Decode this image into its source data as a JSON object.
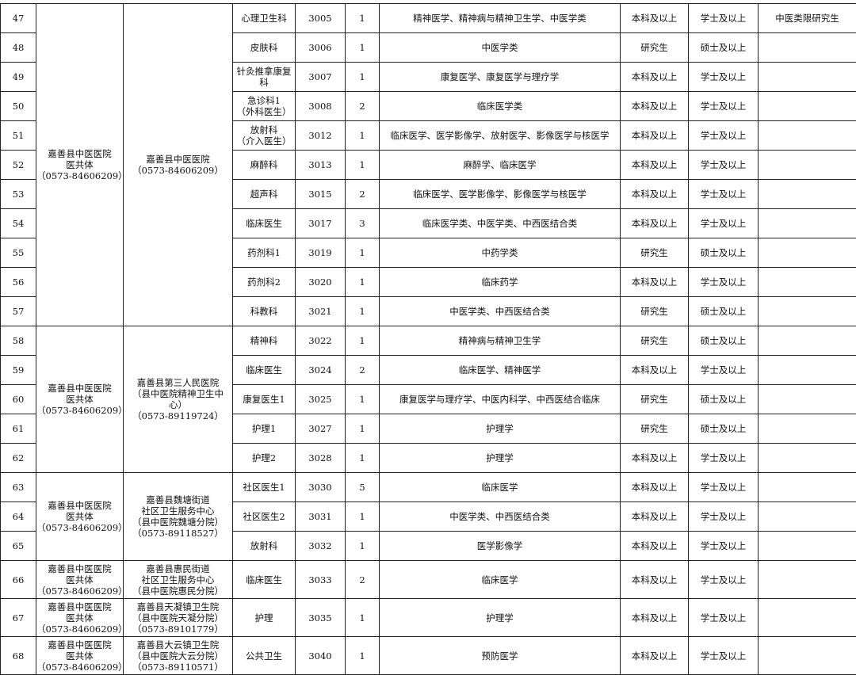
{
  "table": {
    "groups": [
      {
        "span": 11,
        "org": [
          "嘉善县中医医院",
          "医共体",
          "（0573-84606209）"
        ],
        "unit": [
          "嘉善县中医医院",
          "（0573-84606209）"
        ]
      },
      {
        "span": 5,
        "org": [
          "嘉善县中医医院",
          "医共体",
          "（0573-84606209）"
        ],
        "unit": [
          "嘉善县第三人民医院",
          "（县中医院精神卫生中",
          "心）",
          "（0573-89119724）"
        ]
      },
      {
        "span": 3,
        "org": [
          "嘉善县中医医院",
          "医共体",
          "（0573-84606209）"
        ],
        "unit": [
          "嘉善县魏塘街道",
          "社区卫生服务中心",
          "（县中医院魏塘分院）",
          "（0573-89118527）"
        ]
      },
      {
        "span": 1,
        "org": [
          "嘉善县中医医院",
          "医共体",
          "（0573-84606209）"
        ],
        "unit": [
          "嘉善县惠民街道",
          "社区卫生服务中心",
          "（县中医院惠民分院）"
        ]
      },
      {
        "span": 1,
        "org": [
          "嘉善县中医医院",
          "医共体",
          "（0573-84606209）"
        ],
        "unit": [
          "嘉善县天凝镇卫生院",
          "（县中医院天凝分院）",
          "（0573-89101779）"
        ]
      },
      {
        "span": 1,
        "org": [
          "嘉善县中医医院",
          "医共体",
          "（0573-84606209）"
        ],
        "unit": [
          "嘉善县大云镇卫生院",
          "（县中医院大云分院）",
          "（0573-89110571）"
        ]
      }
    ],
    "rows": [
      {
        "no": 47,
        "post": [
          "心理卫生科"
        ],
        "code": 3005,
        "count": 1,
        "major": "精神医学、精神病与精神卫生学、中医学类",
        "edu": "本科及以上",
        "degree": "学士及以上",
        "note": "中医类限研究生"
      },
      {
        "no": 48,
        "post": [
          "皮肤科"
        ],
        "code": 3006,
        "count": 1,
        "major": "中医学类",
        "edu": "研究生",
        "degree": "硕士及以上"
      },
      {
        "no": 49,
        "post": [
          "针灸推拿康复",
          "科"
        ],
        "code": 3007,
        "count": 1,
        "major": "康复医学、康复医学与理疗学",
        "edu": "本科及以上",
        "degree": "学士及以上"
      },
      {
        "no": 50,
        "post": [
          "急诊科1",
          "（外科医生）"
        ],
        "code": 3008,
        "count": 2,
        "major": "临床医学类",
        "edu": "本科及以上",
        "degree": "学士及以上"
      },
      {
        "no": 51,
        "post": [
          "放射科",
          "（介入医生）"
        ],
        "code": 3012,
        "count": 1,
        "major": "临床医学、医学影像学、放射医学、影像医学与核医学",
        "edu": "本科及以上",
        "degree": "学士及以上"
      },
      {
        "no": 52,
        "post": [
          "麻醉科"
        ],
        "code": 3013,
        "count": 1,
        "major": "麻醉学、临床医学",
        "edu": "本科及以上",
        "degree": "学士及以上"
      },
      {
        "no": 53,
        "post": [
          "超声科"
        ],
        "code": 3015,
        "count": 2,
        "major": "临床医学、医学影像学、影像医学与核医学",
        "edu": "本科及以上",
        "degree": "学士及以上"
      },
      {
        "no": 54,
        "post": [
          "临床医生"
        ],
        "code": 3017,
        "count": 3,
        "major": "临床医学类、中医学类、中西医结合类",
        "edu": "本科及以上",
        "degree": "学士及以上"
      },
      {
        "no": 55,
        "post": [
          "药剂科1"
        ],
        "code": 3019,
        "count": 1,
        "major": "中药学类",
        "edu": "研究生",
        "degree": "硕士及以上"
      },
      {
        "no": 56,
        "post": [
          "药剂科2"
        ],
        "code": 3020,
        "count": 1,
        "major": "临床药学",
        "edu": "本科及以上",
        "degree": "学士及以上"
      },
      {
        "no": 57,
        "post": [
          "科教科"
        ],
        "code": 3021,
        "count": 1,
        "major": "中医学类、中西医结合类",
        "edu": "研究生",
        "degree": "硕士及以上"
      },
      {
        "no": 58,
        "post": [
          "精神科"
        ],
        "code": 3022,
        "count": 1,
        "major": "精神病与精神卫生学",
        "edu": "研究生",
        "degree": "硕士及以上"
      },
      {
        "no": 59,
        "post": [
          "临床医生"
        ],
        "code": 3024,
        "count": 2,
        "major": "临床医学、精神医学",
        "edu": "本科及以上",
        "degree": "学士及以上"
      },
      {
        "no": 60,
        "post": [
          "康复医生1"
        ],
        "code": 3025,
        "count": 1,
        "major": "康复医学与理疗学、中医内科学、中西医结合临床",
        "edu": "研究生",
        "degree": "硕士及以上"
      },
      {
        "no": 61,
        "post": [
          "护理1"
        ],
        "code": 3027,
        "count": 1,
        "major": "护理学",
        "edu": "研究生",
        "degree": "硕士及以上"
      },
      {
        "no": 62,
        "post": [
          "护理2"
        ],
        "code": 3028,
        "count": 1,
        "major": "护理学",
        "edu": "本科及以上",
        "degree": "学士及以上"
      },
      {
        "no": 63,
        "post": [
          "社区医生1"
        ],
        "code": 3030,
        "count": 5,
        "major": "临床医学",
        "edu": "本科及以上",
        "degree": "学士及以上"
      },
      {
        "no": 64,
        "post": [
          "社区医生2"
        ],
        "code": 3031,
        "count": 1,
        "major": "中医学类、中西医结合类",
        "edu": "本科及以上",
        "degree": "学士及以上"
      },
      {
        "no": 65,
        "post": [
          "放射科"
        ],
        "code": 3032,
        "count": 1,
        "major": "医学影像学",
        "edu": "本科及以上",
        "degree": "学士及以上"
      },
      {
        "no": 66,
        "post": [
          "临床医生"
        ],
        "code": 3033,
        "count": 2,
        "major": "临床医学",
        "edu": "本科及以上",
        "degree": "学士及以上"
      },
      {
        "no": 67,
        "post": [
          "护理"
        ],
        "code": 3035,
        "count": 1,
        "major": "护理学",
        "edu": "本科及以上",
        "degree": "学士及以上"
      },
      {
        "no": 68,
        "post": [
          "公共卫生"
        ],
        "code": 3040,
        "count": 1,
        "major": "预防医学",
        "edu": "本科及以上",
        "degree": "学士及以上"
      }
    ]
  }
}
